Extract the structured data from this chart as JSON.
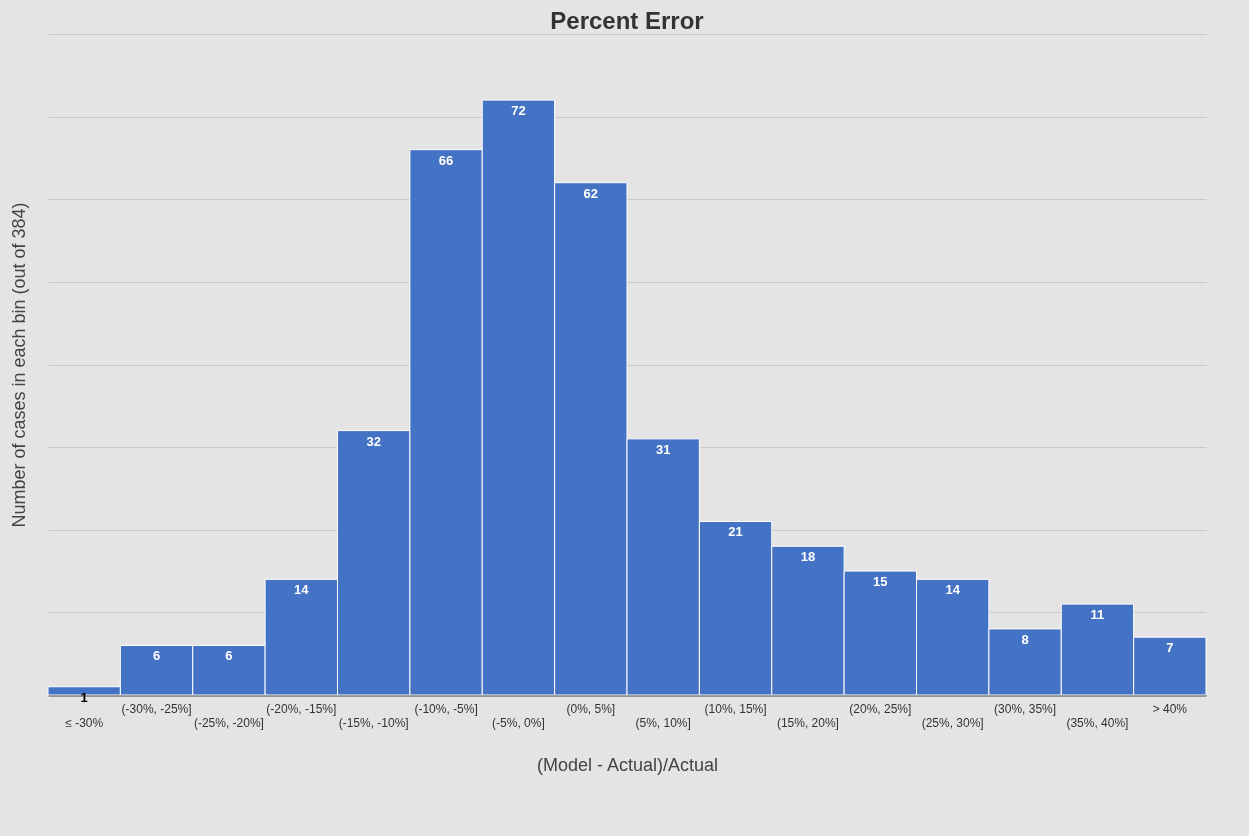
{
  "chart_data": {
    "type": "bar",
    "title": "Percent Error",
    "xlabel": "(Model - Actual)/Actual",
    "ylabel": "Number of cases in each bin (out of 384)",
    "categories": [
      "≤ -30%",
      "(-30%, -25%]",
      "(-25%, -20%]",
      "(-20%, -15%]",
      "(-15%, -10%]",
      "(-10%, -5%]",
      "(-5%, 0%]",
      "(0%, 5%]",
      "(5%, 10%]",
      "(10%, 15%]",
      "(15%, 20%]",
      "(20%, 25%]",
      "(25%, 30%]",
      "(30%, 35%]",
      "(35%, 40%]",
      "> 40%"
    ],
    "values": [
      1,
      6,
      6,
      14,
      32,
      66,
      72,
      62,
      31,
      21,
      18,
      15,
      14,
      8,
      11,
      7
    ],
    "color": "#4472c4",
    "data_labels": true,
    "grid": "y",
    "tick_labels": "x",
    "ylim": [
      0,
      80
    ],
    "yticks": [
      {
        "value": 0,
        "label": null
      },
      {
        "value": 10,
        "label": null
      },
      {
        "value": 20,
        "label": null
      },
      {
        "value": 30,
        "label": null
      },
      {
        "value": 40,
        "label": null
      },
      {
        "value": 50,
        "label": null
      },
      {
        "value": 60,
        "label": null
      },
      {
        "value": 70,
        "label": null
      },
      {
        "value": 80,
        "label": null
      }
    ]
  }
}
